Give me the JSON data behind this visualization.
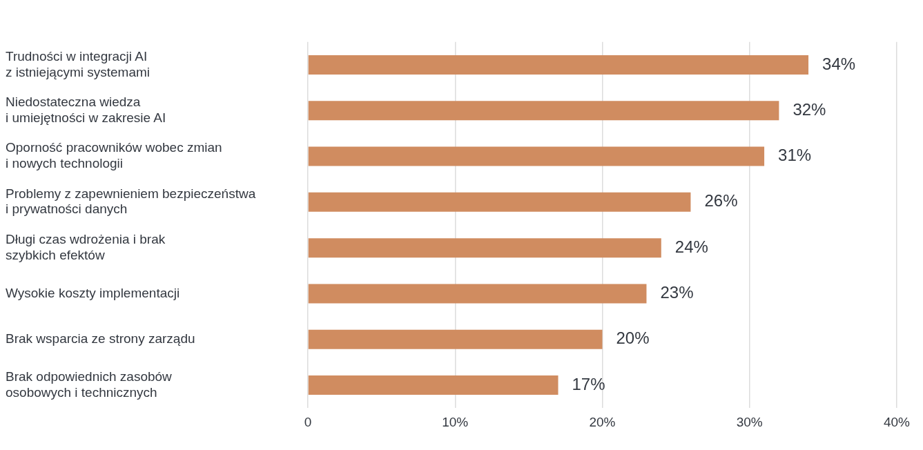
{
  "chart_data": {
    "type": "bar",
    "orientation": "horizontal",
    "categories": [
      "Trudności w integracji AI\nz istniejącymi systemami",
      "Niedostateczna wiedza\ni umiejętności w zakresie AI",
      "Oporność pracowników wobec zmian\ni nowych technologii",
      "Problemy z zapewnieniem bezpieczeństwa\ni prywatności danych",
      "Długi czas wdrożenia i brak\nszybkich efektów",
      "Wysokie koszty implementacji",
      "Brak wsparcia ze strony zarządu",
      "Brak odpowiednich zasobów\nosobowych i technicznych"
    ],
    "values": [
      34,
      32,
      31,
      26,
      24,
      23,
      20,
      17
    ],
    "value_labels": [
      "34%",
      "32%",
      "31%",
      "26%",
      "24%",
      "23%",
      "20%",
      "17%"
    ],
    "color": "#d08c60",
    "xlim": [
      0,
      40
    ],
    "xticks": [
      0,
      {
        "value": 10,
        "label": "10%"
      },
      {
        "value": 20,
        "label": "20%"
      },
      {
        "value": 30,
        "label": "30%"
      },
      {
        "value": 40,
        "label": "40%"
      }
    ],
    "grid": "x",
    "legend": false
  }
}
